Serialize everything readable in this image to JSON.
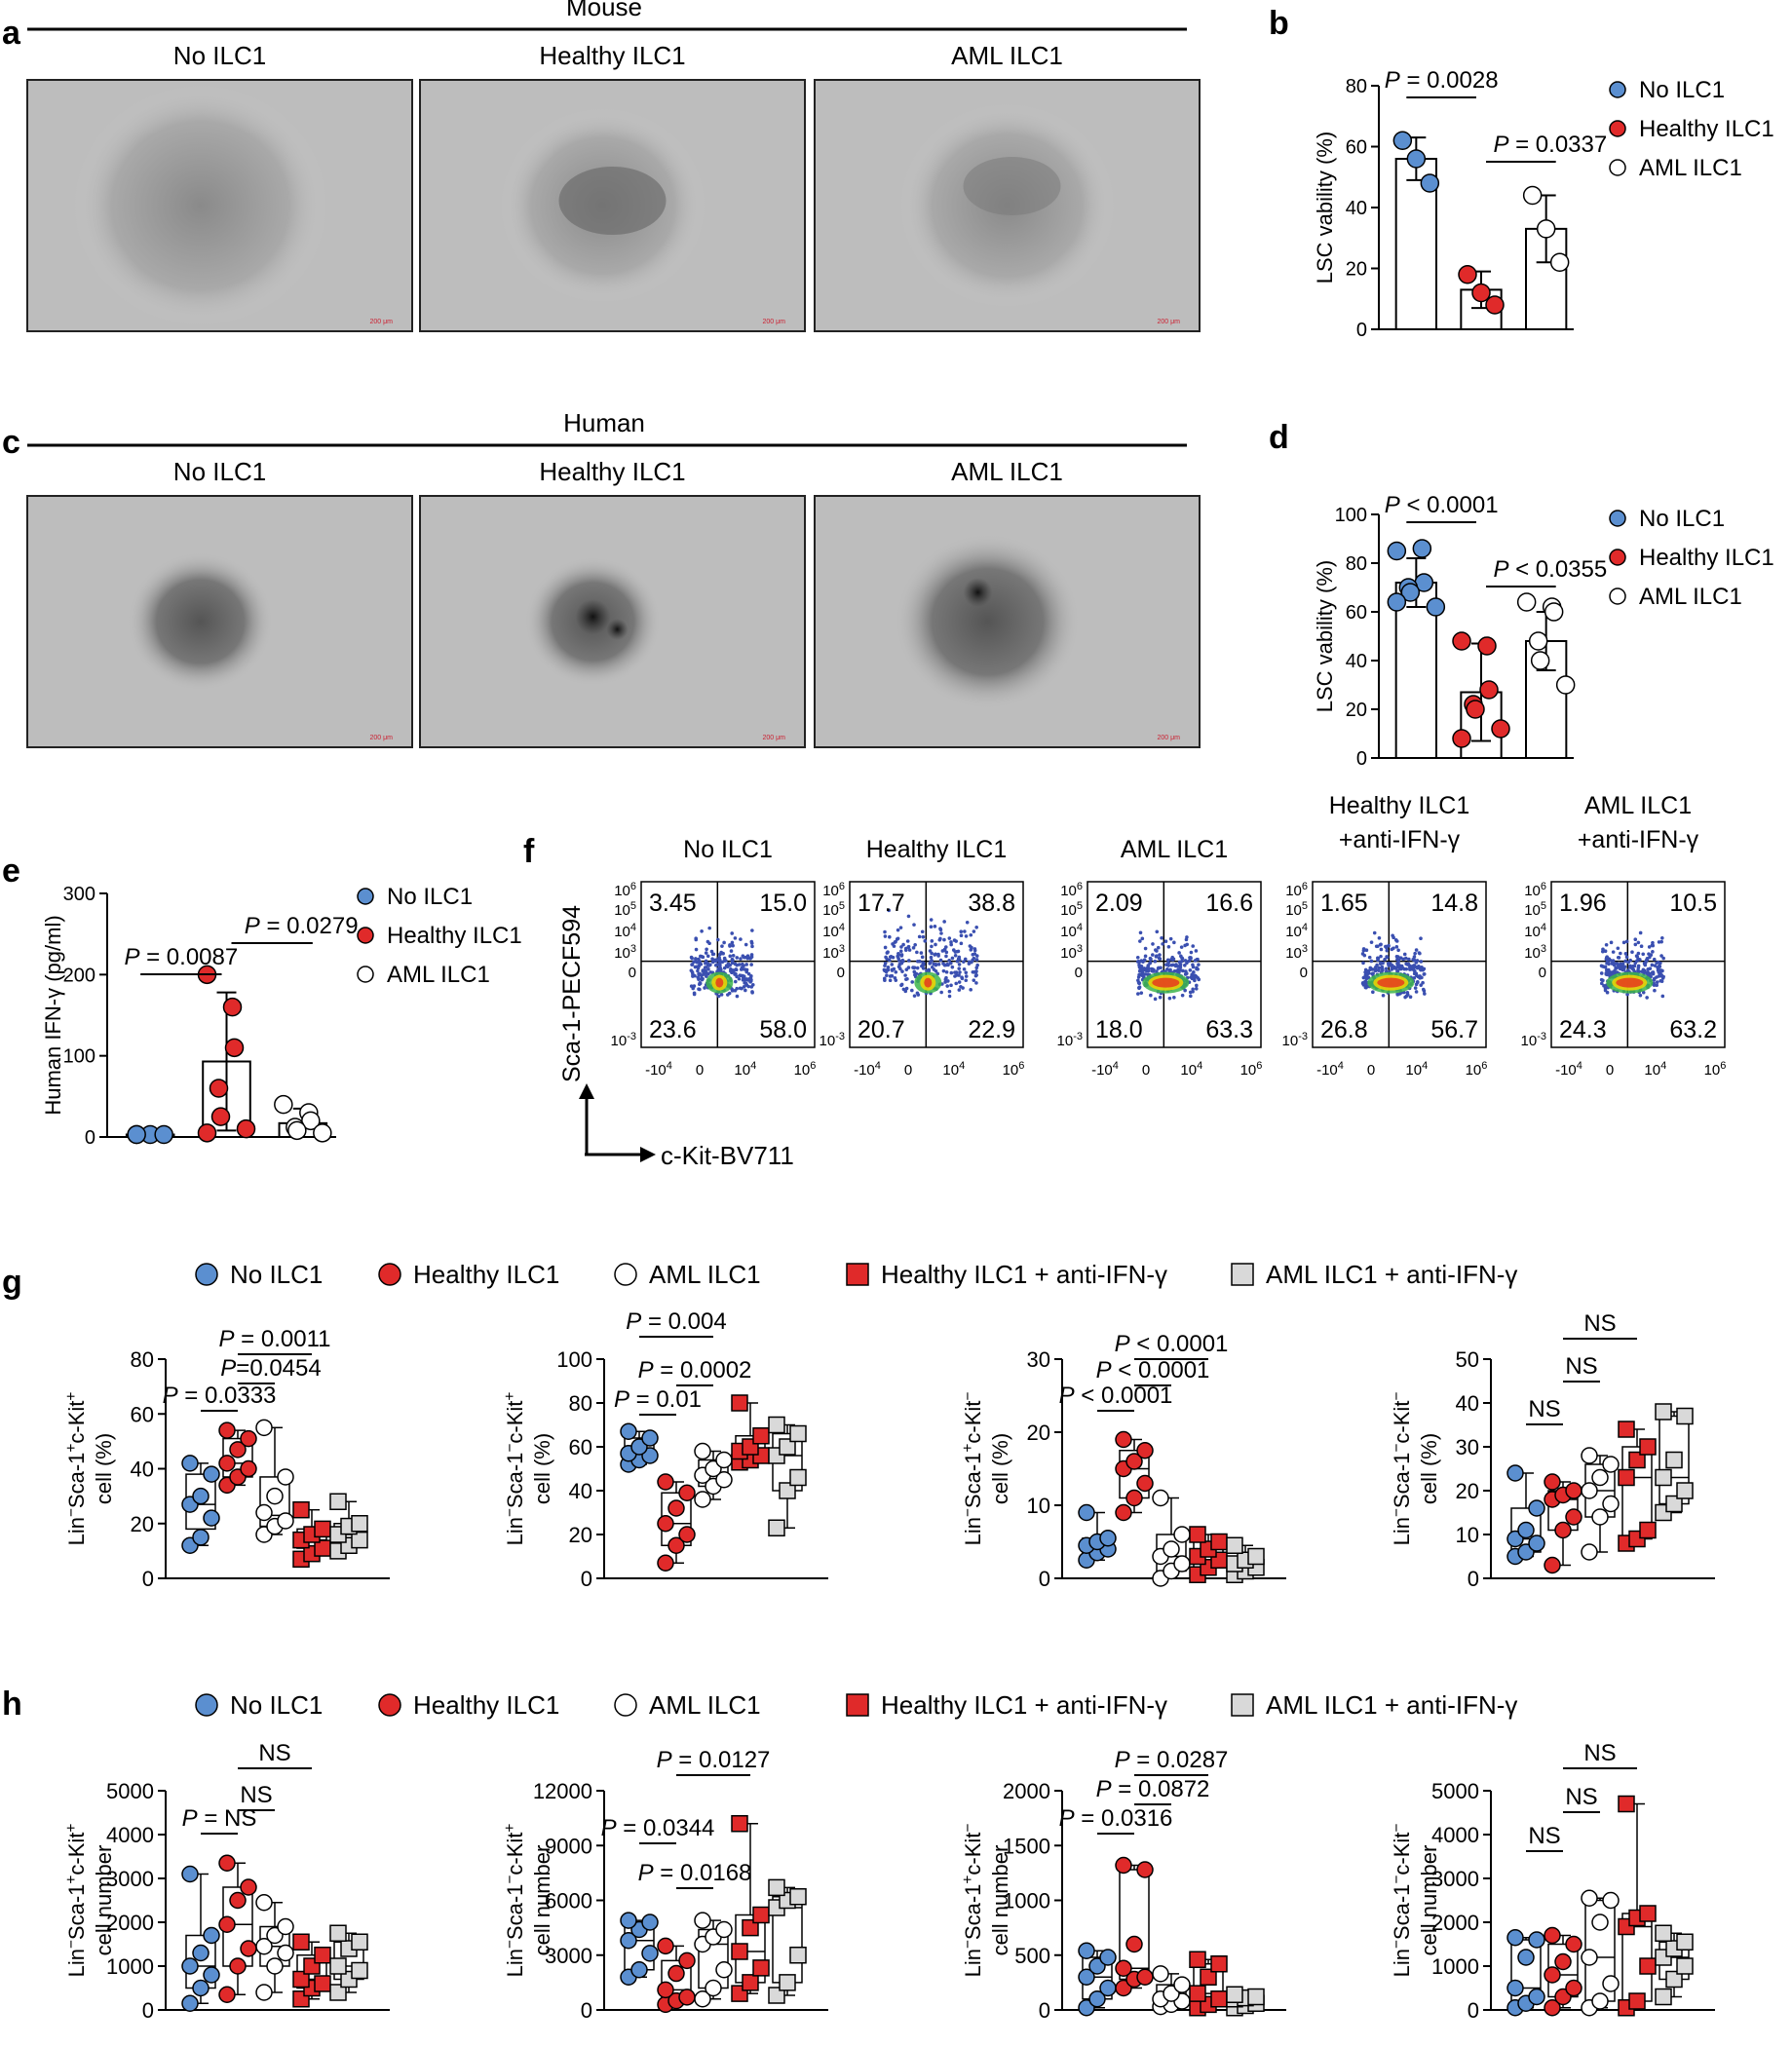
{
  "panel_letters": [
    "a",
    "b",
    "c",
    "d",
    "e",
    "f",
    "g",
    "h"
  ],
  "groups": {
    "no": "No ILC1",
    "healthy": "Healthy ILC1",
    "aml": "AML ILC1",
    "healthy_anti": "Healthy ILC1 + anti-IFN-γ",
    "aml_anti": "AML ILC1 + anti-IFN-γ"
  },
  "colors": {
    "blue": "#5b8fd0",
    "red": "#e02a2a",
    "white": "#ffffff",
    "grey": "#d9d9d9",
    "density_green": "#3cb44b",
    "density_yellow": "#f5d300"
  },
  "panel_a": {
    "species": "Mouse",
    "images": [
      "No ILC1",
      "Healthy ILC1",
      "AML ILC1"
    ],
    "scale_text": "200 μm"
  },
  "panel_c": {
    "species": "Human",
    "images": [
      "No ILC1",
      "Healthy ILC1",
      "AML ILC1"
    ],
    "scale_text": "200 μm"
  },
  "panel_f": {
    "ylabel": "Sca-1-PECF594",
    "xlabel": "c-Kit-BV711",
    "plots": [
      {
        "title1": "",
        "title2": "No ILC1",
        "q": [
          "3.45",
          "15.0",
          "23.6",
          "58.0"
        ]
      },
      {
        "title1": "",
        "title2": "Healthy ILC1",
        "q": [
          "17.7",
          "38.8",
          "20.7",
          "22.9"
        ]
      },
      {
        "title1": "",
        "title2": "AML ILC1",
        "q": [
          "2.09",
          "16.6",
          "18.0",
          "63.3"
        ]
      },
      {
        "title1": "Healthy ILC1",
        "title2": "+anti-IFN-γ",
        "q": [
          "1.65",
          "14.8",
          "26.8",
          "56.7"
        ]
      },
      {
        "title1": "AML ILC1",
        "title2": "+anti-IFN-γ",
        "q": [
          "1.96",
          "10.5",
          "24.3",
          "63.2"
        ]
      }
    ]
  },
  "chart_data": [
    {
      "panel": "b",
      "type": "bar",
      "ylabel": "LSC vability (%)",
      "ylim": [
        0,
        80
      ],
      "categories": [
        "No ILC1",
        "Healthy ILC1",
        "AML ILC1"
      ],
      "values": [
        56,
        13,
        33
      ],
      "error": [
        7,
        6,
        11
      ],
      "points": [
        [
          62,
          56,
          48
        ],
        [
          18,
          12,
          8
        ],
        [
          44,
          33,
          22
        ]
      ],
      "comparisons": [
        {
          "a": 0,
          "b": 1,
          "text": "P = 0.0028"
        },
        {
          "a": 1,
          "b": 2,
          "text": "P = 0.0337"
        }
      ]
    },
    {
      "panel": "d",
      "type": "bar",
      "ylabel": "LSC vability (%)",
      "ylim": [
        0,
        100
      ],
      "categories": [
        "No ILC1",
        "Healthy ILC1",
        "AML ILC1"
      ],
      "values": [
        72,
        27,
        48
      ],
      "error": [
        10,
        20,
        12
      ],
      "points": [
        [
          85,
          86,
          72,
          70,
          68,
          62,
          64
        ],
        [
          48,
          46,
          28,
          22,
          20,
          12,
          8
        ],
        [
          64,
          62,
          60,
          48,
          40,
          30
        ]
      ],
      "comparisons": [
        {
          "a": 0,
          "b": 1,
          "text": "P < 0.0001"
        },
        {
          "a": 1,
          "b": 2,
          "text": "P < 0.0355"
        }
      ]
    },
    {
      "panel": "e",
      "type": "bar",
      "ylabel": "Human IFN-γ (pg/ml)",
      "ylim": [
        0,
        300
      ],
      "categories": [
        "No ILC1",
        "Healthy ILC1",
        "AML ILC1"
      ],
      "values": [
        3,
        93,
        17
      ],
      "error": [
        1,
        85,
        18
      ],
      "points": [
        [
          3,
          3,
          3,
          3
        ],
        [
          200,
          160,
          110,
          60,
          25,
          10,
          5
        ],
        [
          40,
          30,
          20,
          12,
          8,
          5
        ]
      ],
      "comparisons": [
        {
          "a": 0,
          "b": 1,
          "text": "P = 0.0087"
        },
        {
          "a": 1,
          "b": 2,
          "text": "P = 0.0279"
        }
      ]
    },
    {
      "panel": "g1",
      "type": "box",
      "ylabel": "Lin−Sca-1+c-Kit+ cell (%)",
      "ylim": [
        0,
        80
      ],
      "boxes": [
        {
          "min": 12,
          "q1": 18,
          "med": 27,
          "q3": 38,
          "max": 42
        },
        {
          "min": 34,
          "q1": 37,
          "med": 42,
          "q3": 51,
          "max": 54
        },
        {
          "min": 16,
          "q1": 19,
          "med": 23,
          "q3": 37,
          "max": 55
        },
        {
          "min": 7,
          "q1": 11,
          "med": 14,
          "q3": 18,
          "max": 25
        },
        {
          "min": 10,
          "q1": 12,
          "med": 16,
          "q3": 20,
          "max": 28
        }
      ],
      "points": [
        [
          12,
          15,
          22,
          27,
          30,
          38,
          42
        ],
        [
          34,
          37,
          40,
          42,
          47,
          51,
          54
        ],
        [
          16,
          19,
          21,
          24,
          30,
          37,
          55
        ],
        [
          7,
          9,
          11,
          14,
          16,
          18,
          25
        ],
        [
          10,
          12,
          14,
          16,
          19,
          20,
          28
        ]
      ],
      "comparisons": [
        {
          "a": 0,
          "b": 1,
          "text": "P = 0.0333"
        },
        {
          "a": 1,
          "b": 2,
          "text": "P=0.0454"
        },
        {
          "a": 1,
          "b": 3,
          "text": "P = 0.0011"
        }
      ]
    },
    {
      "panel": "g2",
      "type": "box",
      "ylabel": "Lin−Sca-1−c-Kit+ cell (%)",
      "ylim": [
        0,
        100
      ],
      "boxes": [
        {
          "min": 52,
          "q1": 54,
          "med": 57,
          "q3": 64,
          "max": 67
        },
        {
          "min": 7,
          "q1": 15,
          "med": 25,
          "q3": 39,
          "max": 44
        },
        {
          "min": 36,
          "q1": 42,
          "med": 47,
          "q3": 54,
          "max": 58
        },
        {
          "min": 53,
          "q1": 54,
          "med": 58,
          "q3": 65,
          "max": 80
        },
        {
          "min": 23,
          "q1": 40,
          "med": 56,
          "q3": 66,
          "max": 70
        }
      ],
      "points": [
        [
          52,
          54,
          56,
          57,
          60,
          64,
          67
        ],
        [
          7,
          15,
          20,
          25,
          32,
          39,
          44
        ],
        [
          36,
          42,
          45,
          47,
          50,
          54,
          58
        ],
        [
          53,
          54,
          56,
          58,
          60,
          65,
          80
        ],
        [
          23,
          40,
          46,
          56,
          60,
          66,
          70
        ]
      ],
      "comparisons": [
        {
          "a": 0,
          "b": 1,
          "text": "P = 0.01"
        },
        {
          "a": 1,
          "b": 2,
          "text": "P = 0.0002"
        },
        {
          "a": 0,
          "b": 2,
          "text": "P = 0.004"
        }
      ]
    },
    {
      "panel": "g3",
      "type": "box",
      "ylabel": "Lin−Sca-1+c-Kit− cell (%)",
      "ylim": [
        0,
        30
      ],
      "boxes": [
        {
          "min": 2.5,
          "q1": 3.5,
          "med": 4.5,
          "q3": 5.5,
          "max": 9
        },
        {
          "min": 9,
          "q1": 11,
          "med": 15,
          "q3": 17.5,
          "max": 19
        },
        {
          "min": 0,
          "q1": 1,
          "med": 3,
          "q3": 6,
          "max": 11
        },
        {
          "min": 0.5,
          "q1": 1.5,
          "med": 3,
          "q3": 5,
          "max": 6
        },
        {
          "min": 0.5,
          "q1": 1,
          "med": 2,
          "q3": 3,
          "max": 4.5
        }
      ],
      "points": [
        [
          2.5,
          3.5,
          4,
          4.5,
          5,
          5.5,
          9
        ],
        [
          9,
          11,
          13,
          15,
          16,
          17.5,
          19
        ],
        [
          0,
          1,
          2,
          3,
          4,
          6,
          11
        ],
        [
          0.5,
          1.5,
          2.5,
          3,
          4,
          5,
          6
        ],
        [
          0.5,
          1,
          1.5,
          2,
          2.5,
          3,
          4.5
        ]
      ],
      "comparisons": [
        {
          "a": 0,
          "b": 1,
          "text": "P < 0.0001"
        },
        {
          "a": 1,
          "b": 2,
          "text": "P < 0.0001"
        },
        {
          "a": 1,
          "b": 3,
          "text": "P < 0.0001"
        }
      ]
    },
    {
      "panel": "g4",
      "type": "box",
      "ylabel": "Lin−Sca-1−c-Kit− cell (%)",
      "ylim": [
        0,
        50
      ],
      "boxes": [
        {
          "min": 5,
          "q1": 6,
          "med": 9,
          "q3": 16,
          "max": 24
        },
        {
          "min": 3,
          "q1": 11,
          "med": 18,
          "q3": 20,
          "max": 22
        },
        {
          "min": 6,
          "q1": 14,
          "med": 20,
          "q3": 26,
          "max": 28
        },
        {
          "min": 8,
          "q1": 9,
          "med": 23,
          "q3": 30,
          "max": 34
        },
        {
          "min": 15,
          "q1": 17,
          "med": 23,
          "q3": 37,
          "max": 38
        }
      ],
      "points": [
        [
          5,
          6,
          8,
          9,
          11,
          16,
          24
        ],
        [
          3,
          11,
          14,
          18,
          19,
          20,
          22
        ],
        [
          6,
          14,
          17,
          20,
          23,
          26,
          28
        ],
        [
          8,
          9,
          11,
          23,
          27,
          30,
          34
        ],
        [
          15,
          17,
          20,
          23,
          27,
          37,
          38
        ]
      ],
      "comparisons": [
        {
          "a": 0,
          "b": 1,
          "text": "NS"
        },
        {
          "a": 1,
          "b": 2,
          "text": "NS"
        },
        {
          "a": 1,
          "b": 3,
          "text": "NS"
        }
      ]
    },
    {
      "panel": "h1",
      "type": "box",
      "ylabel": "Lin−Sca-1+c-Kit+ cell number",
      "ylim": [
        0,
        5000
      ],
      "boxes": [
        {
          "min": 150,
          "q1": 500,
          "med": 1000,
          "q3": 1700,
          "max": 3100
        },
        {
          "min": 350,
          "q1": 1000,
          "med": 1950,
          "q3": 2800,
          "max": 3350
        },
        {
          "min": 400,
          "q1": 1000,
          "med": 1450,
          "q3": 1900,
          "max": 2450
        },
        {
          "min": 250,
          "q1": 500,
          "med": 700,
          "q3": 1250,
          "max": 1550
        },
        {
          "min": 400,
          "q1": 700,
          "med": 1000,
          "q3": 1550,
          "max": 1750
        }
      ],
      "points": [
        [
          150,
          500,
          800,
          1000,
          1300,
          1700,
          3100
        ],
        [
          350,
          1000,
          1400,
          1950,
          2500,
          2800,
          3350
        ],
        [
          400,
          1000,
          1300,
          1450,
          1700,
          1900,
          2450
        ],
        [
          250,
          500,
          600,
          700,
          1000,
          1250,
          1550
        ],
        [
          400,
          700,
          900,
          1000,
          1400,
          1550,
          1750
        ]
      ],
      "comparisons": [
        {
          "a": 0,
          "b": 1,
          "text": "P = NS"
        },
        {
          "a": 1,
          "b": 2,
          "text": "NS"
        },
        {
          "a": 1,
          "b": 3,
          "text": "NS"
        }
      ]
    },
    {
      "panel": "h2",
      "type": "box",
      "ylabel": "Lin−Sca-1−c-Kit+ cell number",
      "ylim": [
        0,
        12000
      ],
      "boxes": [
        {
          "min": 1800,
          "q1": 2200,
          "med": 3800,
          "q3": 4800,
          "max": 4900
        },
        {
          "min": 300,
          "q1": 500,
          "med": 1100,
          "q3": 2700,
          "max": 3500
        },
        {
          "min": 600,
          "q1": 1200,
          "med": 3600,
          "q3": 4400,
          "max": 4900
        },
        {
          "min": 900,
          "q1": 1500,
          "med": 3200,
          "q3": 5200,
          "max": 10200
        },
        {
          "min": 800,
          "q1": 1500,
          "med": 5600,
          "q3": 6200,
          "max": 6700
        }
      ],
      "points": [
        [
          1800,
          2200,
          3100,
          3800,
          4400,
          4800,
          4900
        ],
        [
          300,
          500,
          700,
          1100,
          2000,
          2700,
          3500
        ],
        [
          600,
          1200,
          2200,
          3600,
          4000,
          4400,
          4900
        ],
        [
          900,
          1500,
          2300,
          3200,
          4500,
          5200,
          10200
        ],
        [
          800,
          1500,
          3000,
          5600,
          6000,
          6200,
          6700
        ]
      ],
      "comparisons": [
        {
          "a": 0,
          "b": 1,
          "text": "P = 0.0344"
        },
        {
          "a": 1,
          "b": 2,
          "text": "P = 0.0168"
        },
        {
          "a": 1,
          "b": 3,
          "text": "P = 0.0127"
        }
      ]
    },
    {
      "panel": "h3",
      "type": "box",
      "ylabel": "Lin−Sca-1+c-Kit− cell number",
      "ylim": [
        0,
        2000
      ],
      "boxes": [
        {
          "min": 20,
          "q1": 100,
          "med": 300,
          "q3": 480,
          "max": 540
        },
        {
          "min": 200,
          "q1": 280,
          "med": 380,
          "q3": 1280,
          "max": 1320
        },
        {
          "min": 30,
          "q1": 50,
          "med": 100,
          "q3": 230,
          "max": 330
        },
        {
          "min": 20,
          "q1": 50,
          "med": 150,
          "q3": 420,
          "max": 460
        },
        {
          "min": 20,
          "q1": 40,
          "med": 100,
          "q3": 120,
          "max": 140
        }
      ],
      "points": [
        [
          20,
          100,
          200,
          300,
          400,
          480,
          540
        ],
        [
          200,
          280,
          300,
          380,
          600,
          1280,
          1320
        ],
        [
          30,
          50,
          80,
          100,
          150,
          230,
          330
        ],
        [
          20,
          50,
          100,
          150,
          300,
          420,
          460
        ],
        [
          20,
          40,
          60,
          100,
          110,
          120,
          140
        ]
      ],
      "comparisons": [
        {
          "a": 0,
          "b": 1,
          "text": "P = 0.0316"
        },
        {
          "a": 1,
          "b": 2,
          "text": "P = 0.0872"
        },
        {
          "a": 1,
          "b": 3,
          "text": "P = 0.0287"
        }
      ]
    },
    {
      "panel": "h4",
      "type": "box",
      "ylabel": "Lin−Sca-1−c-Kit− cell number",
      "ylim": [
        0,
        5000
      ],
      "boxes": [
        {
          "min": 50,
          "q1": 150,
          "med": 500,
          "q3": 1600,
          "max": 1650
        },
        {
          "min": 50,
          "q1": 300,
          "med": 800,
          "q3": 1500,
          "max": 1700
        },
        {
          "min": 50,
          "q1": 200,
          "med": 1200,
          "q3": 2500,
          "max": 2550
        },
        {
          "min": 50,
          "q1": 200,
          "med": 1900,
          "q3": 2200,
          "max": 4700
        },
        {
          "min": 300,
          "q1": 700,
          "med": 1200,
          "q3": 1550,
          "max": 1750
        }
      ],
      "points": [
        [
          50,
          150,
          300,
          500,
          1200,
          1600,
          1650
        ],
        [
          50,
          300,
          500,
          800,
          1100,
          1500,
          1700
        ],
        [
          50,
          200,
          600,
          1200,
          2000,
          2500,
          2550
        ],
        [
          50,
          200,
          1000,
          1900,
          2100,
          2200,
          4700
        ],
        [
          300,
          700,
          1000,
          1200,
          1400,
          1550,
          1750
        ]
      ],
      "comparisons": [
        {
          "a": 0,
          "b": 1,
          "text": "NS"
        },
        {
          "a": 1,
          "b": 2,
          "text": "NS"
        },
        {
          "a": 1,
          "b": 3,
          "text": "NS"
        }
      ]
    }
  ]
}
